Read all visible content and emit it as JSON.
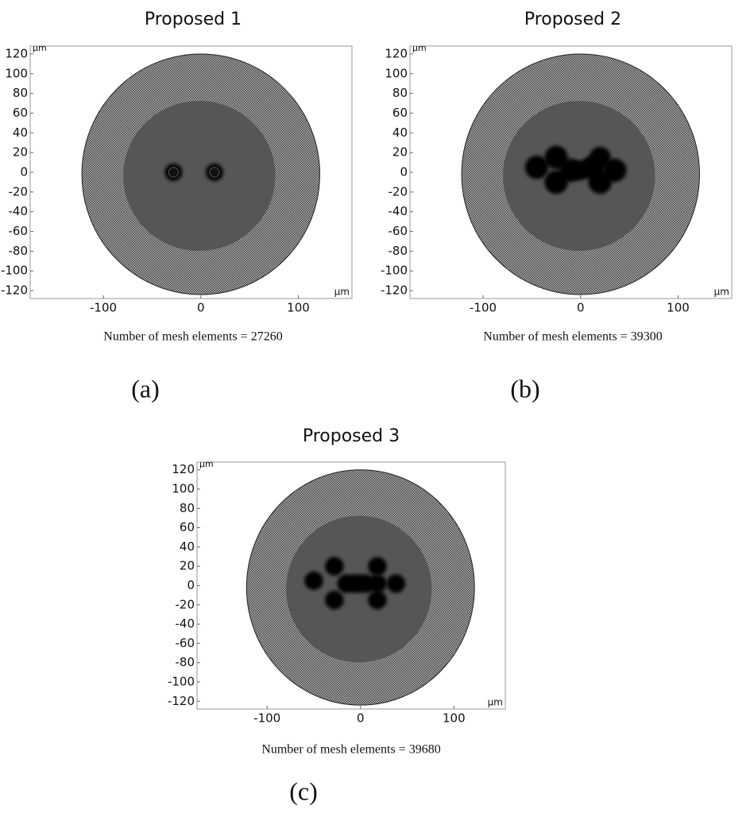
{
  "panels": [
    {
      "title": "Proposed 1",
      "unit_top": "μm",
      "unit_bottom": "μm",
      "xlim": [
        -175,
        155
      ],
      "ylim": [
        -128,
        128
      ],
      "xticks": [
        -100,
        0,
        100
      ],
      "yticks": [
        120,
        100,
        80,
        60,
        40,
        20,
        0,
        -20,
        -40,
        -60,
        -80,
        -100,
        -120
      ],
      "caption": "Number of mesh elements = 27260",
      "label": "(a)"
    },
    {
      "title": "Proposed 2",
      "unit_top": "μm",
      "unit_bottom": "μm",
      "xlim": [
        -175,
        155
      ],
      "ylim": [
        -128,
        128
      ],
      "xticks": [
        -100,
        0,
        100
      ],
      "yticks": [
        120,
        100,
        80,
        60,
        40,
        20,
        0,
        -20,
        -40,
        -60,
        -80,
        -100,
        -120
      ],
      "caption": "Number of mesh elements = 39300",
      "label": "(b)"
    },
    {
      "title": "Proposed 3",
      "unit_top": "μm",
      "unit_bottom": "μm",
      "xlim": [
        -175,
        155
      ],
      "ylim": [
        -128,
        128
      ],
      "xticks": [
        -100,
        0,
        100
      ],
      "yticks": [
        120,
        100,
        80,
        60,
        40,
        20,
        0,
        -20,
        -40,
        -60,
        -80,
        -100,
        -120
      ],
      "caption": "Number of mesh elements = 39680",
      "label": "(c)"
    }
  ]
}
